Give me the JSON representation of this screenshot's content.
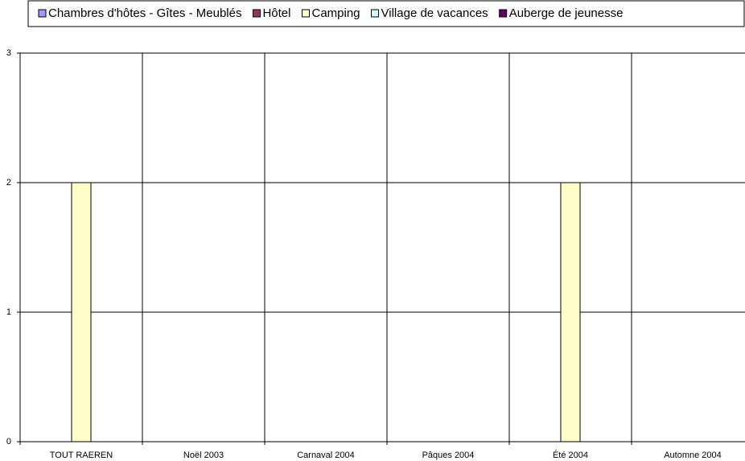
{
  "chart_data": {
    "type": "bar",
    "categories": [
      "TOUT RAEREN",
      "Noël 2003",
      "Carnaval 2004",
      "Pâques 2004",
      "Été 2004",
      "Automne 2004"
    ],
    "series": [
      {
        "name": "Chambres d'hôtes - Gîtes - Meublés",
        "color": "#9999ff",
        "values": [
          0,
          0,
          0,
          0,
          0,
          0
        ]
      },
      {
        "name": "Hôtel",
        "color": "#993366",
        "values": [
          0,
          0,
          0,
          0,
          0,
          0
        ]
      },
      {
        "name": "Camping",
        "color": "#ffffcc",
        "values": [
          2,
          0,
          0,
          0,
          2,
          0
        ]
      },
      {
        "name": "Village de vacances",
        "color": "#ccffff",
        "values": [
          0,
          0,
          0,
          0,
          0,
          0
        ]
      },
      {
        "name": "Auberge de jeunesse",
        "color": "#660066",
        "values": [
          0,
          0,
          0,
          0,
          0,
          0
        ]
      }
    ],
    "ylim": [
      0,
      3
    ],
    "yticks": [
      0,
      1,
      2,
      3
    ],
    "grid": true,
    "legend": "top"
  }
}
